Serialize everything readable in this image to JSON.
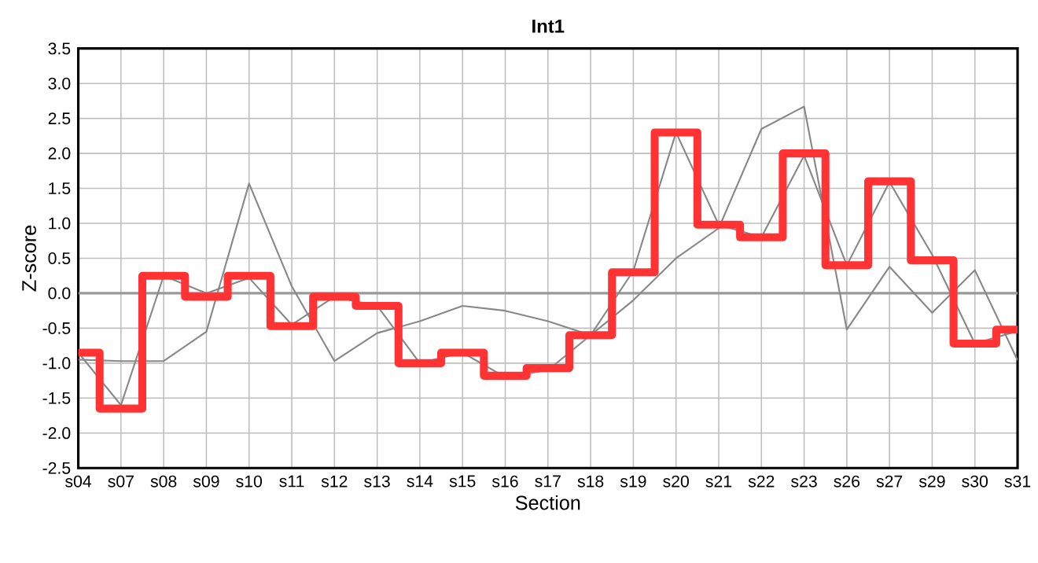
{
  "chart_data": {
    "type": "line",
    "title": "Int1",
    "xlabel": "Section",
    "ylabel": "Z-score",
    "categories": [
      "s04",
      "s07",
      "s08",
      "s09",
      "s10",
      "s11",
      "s12",
      "s13",
      "s14",
      "s15",
      "s16",
      "s17",
      "s18",
      "s19",
      "s20",
      "s21",
      "s22",
      "s23",
      "s26",
      "s27",
      "s29",
      "s30",
      "s31"
    ],
    "series": [
      {
        "color": "#888888",
        "values": [
          -0.95,
          -0.97,
          -0.97,
          -0.55,
          1.57,
          0.1,
          -0.97,
          -0.57,
          -0.4,
          -0.18,
          -0.25,
          -0.4,
          -0.6,
          -0.1,
          0.5,
          0.93,
          2.35,
          2.67,
          -0.52,
          0.38,
          -0.28,
          0.33,
          -0.96
        ]
      },
      {
        "color": "#888888",
        "values": [
          -0.85,
          -1.6,
          0.25,
          0.0,
          0.22,
          -0.45,
          -0.05,
          -0.18,
          -1.0,
          -0.85,
          -1.2,
          -1.1,
          -0.6,
          0.32,
          2.3,
          0.98,
          0.8,
          1.97,
          0.4,
          1.59,
          0.55,
          -0.72,
          -0.54
        ]
      },
      {
        "type": "step",
        "color": "#ff3333",
        "values": [
          -0.85,
          -1.65,
          0.25,
          -0.05,
          0.25,
          -0.47,
          -0.05,
          -0.18,
          -1.0,
          -0.85,
          -1.18,
          -1.07,
          -0.6,
          0.3,
          2.3,
          0.98,
          0.8,
          2.0,
          0.4,
          1.6,
          0.47,
          -0.72,
          -0.52
        ]
      }
    ],
    "ylim": [
      -2.5,
      3.5
    ],
    "yticks": [
      -2.5,
      {
        "value": -2,
        "label": "-2.0"
      },
      -1.5,
      {
        "value": -1,
        "label": "-1.0"
      },
      -0.5,
      {
        "value": 0,
        "label": "0.0"
      },
      0.5,
      {
        "value": 1,
        "label": "1.0"
      },
      1.5,
      {
        "value": 2,
        "label": "2.0"
      },
      2.5,
      {
        "value": 3,
        "label": "3.0"
      },
      3.5
    ],
    "ref_lines": [
      {
        "axis": "y",
        "value": 0,
        "color": "#999999"
      }
    ],
    "grid": true,
    "marker": "none",
    "line_style": "solid"
  }
}
